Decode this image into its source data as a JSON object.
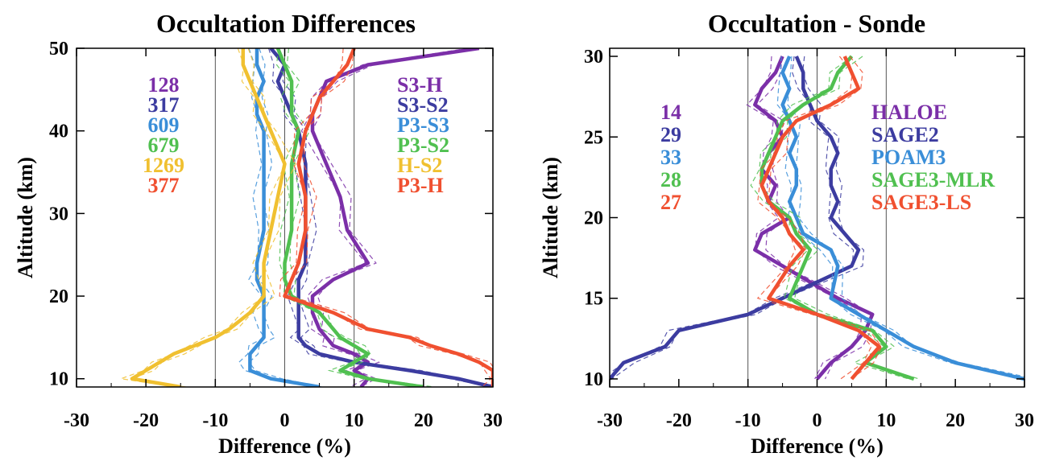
{
  "chart_data": [
    {
      "type": "line",
      "title": "Occultation Differences",
      "xlabel": "Difference (%)",
      "ylabel": "Altitude (km)",
      "xlim": [
        -30,
        30
      ],
      "ylim": [
        9,
        50
      ],
      "xticks": [
        "-30",
        "-20",
        "-10",
        "0",
        "10",
        "20",
        "30"
      ],
      "yticks": [
        "10",
        "20",
        "30",
        "40",
        "50"
      ],
      "reference_lines_x": [
        -10,
        0,
        10
      ],
      "counts": [
        "128",
        "317",
        "609",
        "679",
        "1269",
        "377"
      ],
      "series": [
        {
          "name": "S3-H",
          "color": "#7b2fa8",
          "x": [
            28,
            12,
            6,
            5,
            4,
            4,
            6,
            8,
            9,
            12,
            7,
            4,
            4,
            5,
            6,
            7,
            10,
            12,
            10,
            12,
            11
          ],
          "y": [
            50,
            48,
            46,
            44,
            42,
            40,
            36,
            32,
            28,
            24,
            22,
            20,
            18,
            16,
            15,
            14,
            13,
            12,
            11,
            10,
            9
          ]
        },
        {
          "name": "S3-S2",
          "color": "#3c3ca0",
          "x": [
            -2,
            0,
            -1,
            0,
            1,
            2,
            3,
            3,
            3,
            3,
            2,
            2,
            2,
            2,
            2,
            3,
            5,
            10,
            18,
            25,
            30
          ],
          "y": [
            50,
            48,
            46,
            44,
            42,
            40,
            36,
            32,
            28,
            24,
            22,
            20,
            18,
            16,
            15,
            14,
            13,
            12,
            11,
            10,
            9
          ]
        },
        {
          "name": "P3-S3",
          "color": "#3a8ed8",
          "x": [
            -4,
            -4,
            -3,
            -4,
            -4,
            -3,
            -3,
            -3,
            -3,
            -4,
            -4,
            -3,
            -3,
            -3,
            -3,
            -4,
            -5,
            -5,
            -5,
            -2,
            5
          ],
          "y": [
            50,
            48,
            46,
            44,
            42,
            40,
            36,
            32,
            28,
            24,
            22,
            20,
            18,
            16,
            15,
            14,
            13,
            12,
            11,
            10,
            9
          ]
        },
        {
          "name": "P3-S2",
          "color": "#50c050",
          "x": [
            -1,
            0,
            1,
            1,
            1,
            2,
            1,
            1,
            1,
            0,
            0,
            1,
            5,
            7,
            8,
            10,
            12,
            10,
            8,
            12,
            20
          ],
          "y": [
            50,
            48,
            46,
            44,
            42,
            40,
            36,
            32,
            28,
            24,
            22,
            20,
            18,
            16,
            15,
            14,
            13,
            12,
            11,
            10,
            9
          ]
        },
        {
          "name": "H-S2",
          "color": "#f0c030",
          "x": [
            -6,
            -6,
            -5,
            -4,
            -3,
            -2,
            0,
            -1,
            -2,
            -3,
            -3,
            -3,
            -5,
            -8,
            -10,
            -13,
            -16,
            -18,
            -20,
            -22,
            -15
          ],
          "y": [
            50,
            48,
            46,
            44,
            42,
            40,
            36,
            32,
            28,
            24,
            22,
            20,
            18,
            16,
            15,
            14,
            13,
            12,
            11,
            10,
            9
          ]
        },
        {
          "name": "P3-H",
          "color": "#f05030",
          "x": [
            10,
            9,
            7,
            5,
            4,
            3,
            2,
            3,
            3,
            2,
            1,
            0,
            7,
            12,
            18,
            21,
            25,
            28,
            30,
            30,
            30
          ],
          "y": [
            50,
            48,
            46,
            44,
            42,
            40,
            36,
            32,
            28,
            24,
            22,
            20,
            18,
            16,
            15,
            14,
            13,
            12,
            11,
            10,
            9
          ]
        }
      ]
    },
    {
      "type": "line",
      "title": "Occultation - Sonde",
      "xlabel": "Difference (%)",
      "ylabel": "Altitude (km)",
      "xlim": [
        -30,
        30
      ],
      "ylim": [
        9.5,
        30.5
      ],
      "xticks": [
        "-30",
        "-20",
        "-10",
        "0",
        "10",
        "20",
        "30"
      ],
      "yticks": [
        "10",
        "15",
        "20",
        "25",
        "30"
      ],
      "reference_lines_x": [
        -10,
        0,
        10
      ],
      "counts": [
        "14",
        "29",
        "33",
        "28",
        "27"
      ],
      "series": [
        {
          "name": "HALOE",
          "color": "#7b2fa8",
          "x": [
            -5,
            -6,
            -8,
            -9,
            -6,
            -5,
            -7,
            -8,
            -6,
            -7,
            -4,
            -8,
            -9,
            -5,
            3,
            8,
            7,
            5,
            2,
            0
          ],
          "y": [
            30,
            29,
            28,
            27,
            26,
            25,
            24,
            23,
            22,
            21,
            20,
            19,
            18,
            17,
            15,
            14,
            13,
            12,
            11,
            10
          ]
        },
        {
          "name": "SAGE2",
          "color": "#3c3ca0",
          "x": [
            -3,
            -2,
            -2,
            -1,
            0,
            2,
            3,
            2,
            2,
            3,
            2,
            4,
            6,
            5,
            -5,
            -10,
            -20,
            -22,
            -28,
            -30
          ],
          "y": [
            30,
            29,
            28,
            27,
            26,
            25,
            24,
            23,
            22,
            21,
            20,
            19,
            18,
            17,
            15,
            14,
            13,
            12,
            11,
            10
          ]
        },
        {
          "name": "POAM3",
          "color": "#3a8ed8",
          "x": [
            -4,
            -5,
            -4,
            -5,
            -4,
            -3,
            -4,
            -3,
            -3,
            -4,
            -3,
            -2,
            2,
            3,
            2,
            6,
            10,
            14,
            20,
            30
          ],
          "y": [
            30,
            29,
            28,
            27,
            26,
            25,
            24,
            23,
            22,
            21,
            20,
            19,
            18,
            17,
            15,
            14,
            13,
            12,
            11,
            10
          ]
        },
        {
          "name": "SAGE3-MLR",
          "color": "#50c050",
          "x": [
            5,
            3,
            2,
            -2,
            -5,
            -6,
            -7,
            -8,
            -8,
            -7,
            -4,
            -3,
            -1,
            -2,
            -4,
            0,
            8,
            10,
            7,
            14
          ],
          "y": [
            30,
            29,
            28,
            27,
            26,
            25,
            24,
            23,
            22,
            21,
            20,
            19,
            18,
            17,
            15,
            14,
            13,
            12,
            11,
            10
          ]
        },
        {
          "name": "SAGE3-LS",
          "color": "#f05030",
          "x": [
            4,
            5,
            6,
            2,
            -3,
            -5,
            -6,
            -7,
            -8,
            -7,
            -5,
            -4,
            -2,
            -4,
            -7,
            0,
            6,
            9,
            7,
            5
          ],
          "y": [
            30,
            29,
            28,
            27,
            26,
            25,
            24,
            23,
            22,
            21,
            20,
            19,
            18,
            17,
            15,
            14,
            13,
            12,
            11,
            10
          ]
        }
      ]
    }
  ]
}
